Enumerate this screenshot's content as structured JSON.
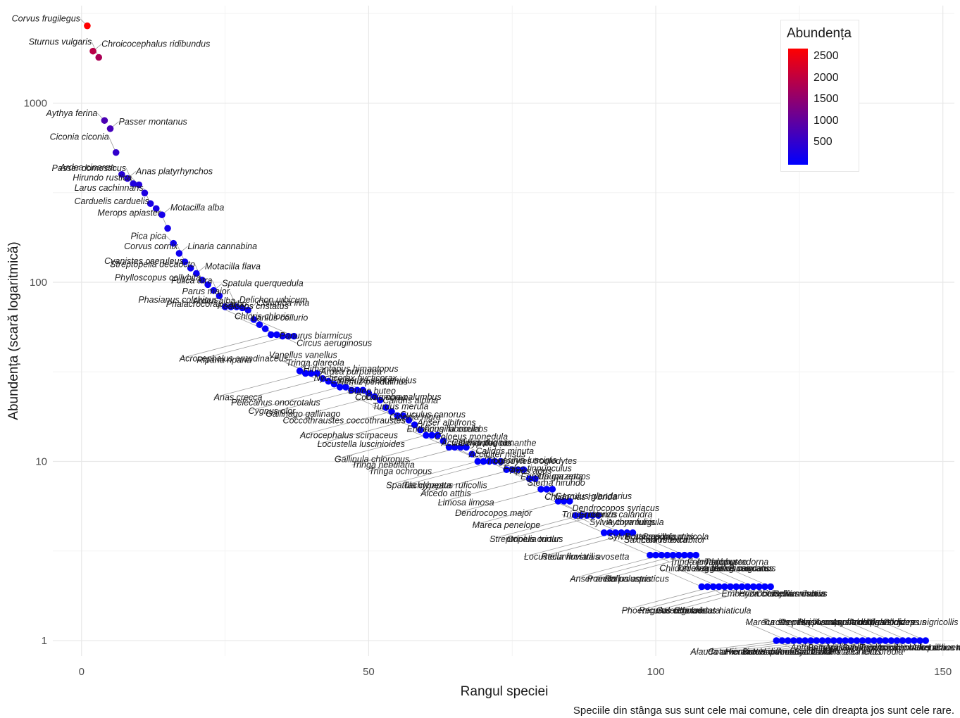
{
  "chart_data": {
    "type": "scatter",
    "title": "",
    "xlabel": "Rangul speciei",
    "ylabel": "Abundența (scară logaritmică)",
    "caption": "Speciile din stânga sus sunt cele mai comune, cele din dreapta jos sunt cele rare.",
    "x_scale": "linear",
    "y_scale": "log10",
    "xlim": [
      -5,
      152
    ],
    "ylim": [
      0.82,
      3500
    ],
    "x_ticks": [
      0,
      50,
      100,
      150
    ],
    "y_ticks": [
      1,
      10,
      100,
      1000
    ],
    "y_tick_labels": [
      "1",
      "10",
      "100",
      "1000"
    ],
    "grid": true,
    "color_scale": {
      "low": "#0000ff",
      "high": "#ff0000",
      "min": 1,
      "max": 2700
    },
    "legend": {
      "title": "Abundența",
      "placement": "top-right",
      "labels": [
        "2500",
        "2000",
        "1500",
        "1000",
        "500"
      ],
      "values": [
        2500,
        2000,
        1500,
        1000,
        500
      ]
    },
    "points": [
      {
        "x": 1,
        "y": 2700,
        "label": "Corvus frugilegus"
      },
      {
        "x": 2,
        "y": 1950,
        "label": "Chroicocephalus ridibundus"
      },
      {
        "x": 3,
        "y": 1800,
        "label": "Sturnus vulgaris"
      },
      {
        "x": 4,
        "y": 800,
        "label": "Aythya ferina"
      },
      {
        "x": 5,
        "y": 720,
        "label": "Passer montanus"
      },
      {
        "x": 6,
        "y": 530,
        "label": "Ciconia ciconia"
      },
      {
        "x": 7,
        "y": 400,
        "label": "Ardea cinerea"
      },
      {
        "x": 8,
        "y": 380,
        "label": "Anas platyrhynchos"
      },
      {
        "x": 9,
        "y": 355,
        "label": "Passer domesticus"
      },
      {
        "x": 10,
        "y": 350,
        "label": "Hirundo rustica"
      },
      {
        "x": 11,
        "y": 315,
        "label": ""
      },
      {
        "x": 12,
        "y": 275,
        "label": "Larus cachinnans"
      },
      {
        "x": 13,
        "y": 258,
        "label": "Carduelis carduelis"
      },
      {
        "x": 14,
        "y": 238,
        "label": "Motacilla alba"
      },
      {
        "x": 15,
        "y": 200,
        "label": "Merops apiaster"
      },
      {
        "x": 16,
        "y": 165,
        "label": "Pica pica"
      },
      {
        "x": 17,
        "y": 145,
        "label": "Linaria cannabina"
      },
      {
        "x": 18,
        "y": 130,
        "label": "Corvus cornix"
      },
      {
        "x": 19,
        "y": 120,
        "label": "Cyanistes caeruleus"
      },
      {
        "x": 20,
        "y": 112,
        "label": "Motacilla flava"
      },
      {
        "x": 21,
        "y": 103,
        "label": "Streptopelia decaocto"
      },
      {
        "x": 22,
        "y": 97,
        "label": "Phylloscopus collybita"
      },
      {
        "x": 23,
        "y": 90,
        "label": "Spatula querquedula"
      },
      {
        "x": 24,
        "y": 84,
        "label": "Fulica atra"
      },
      {
        "x": 25,
        "y": 73,
        "label": "Phasianus colchicus"
      },
      {
        "x": 26,
        "y": 73,
        "label": "Delichon urbicum"
      },
      {
        "x": 27,
        "y": 73,
        "label": "Parus major"
      },
      {
        "x": 28,
        "y": 72,
        "label": "Ardea alba"
      },
      {
        "x": 29,
        "y": 70,
        "label": "Columba livia"
      },
      {
        "x": 30,
        "y": 62,
        "label": "Phalacrocorax carbo"
      },
      {
        "x": 31,
        "y": 58,
        "label": "Podiceps cristatus"
      },
      {
        "x": 32,
        "y": 55,
        "label": "Panurus biarmicus"
      },
      {
        "x": 33,
        "y": 51,
        "label": "Acrocephalus arundinaceus"
      },
      {
        "x": 34,
        "y": 51,
        "label": "Chloris chloris"
      },
      {
        "x": 35,
        "y": 50,
        "label": "Circus aeruginosus"
      },
      {
        "x": 36,
        "y": 50,
        "label": "Riparia riparia"
      },
      {
        "x": 37,
        "y": 50,
        "label": "Lanius collurio"
      },
      {
        "x": 38,
        "y": 32,
        "label": "Nycticorax nycticorax"
      },
      {
        "x": 39,
        "y": 31,
        "label": "Anas crecca"
      },
      {
        "x": 40,
        "y": 31,
        "label": "Vanellus vanellus"
      },
      {
        "x": 41,
        "y": 31,
        "label": "Emberiza schoeniclus"
      },
      {
        "x": 42,
        "y": 29,
        "label": "Pelecanus onocrotalus"
      },
      {
        "x": 43,
        "y": 28,
        "label": "Tringa glareola"
      },
      {
        "x": 44,
        "y": 27,
        "label": "Buteo buteo"
      },
      {
        "x": 45,
        "y": 26,
        "label": "Cygnus olor"
      },
      {
        "x": 46,
        "y": 26,
        "label": "Himantopus himantopus"
      },
      {
        "x": 47,
        "y": 25,
        "label": "Columba palumbus"
      },
      {
        "x": 48,
        "y": 25,
        "label": "Gallinago gallinago"
      },
      {
        "x": 49,
        "y": 25,
        "label": "Ardea purpurea"
      },
      {
        "x": 50,
        "y": 24,
        "label": "Calidris alpina"
      },
      {
        "x": 51,
        "y": 23,
        "label": "Coccothraustes coccothraustes"
      },
      {
        "x": 52,
        "y": 22,
        "label": "Remiz pendulinus"
      },
      {
        "x": 53,
        "y": 20,
        "label": "Cuculus canorus"
      },
      {
        "x": 54,
        "y": 19,
        "label": "Acrocephalus scirpaceus"
      },
      {
        "x": 55,
        "y": 18,
        "label": "Corvus corax"
      },
      {
        "x": 56,
        "y": 18,
        "label": "Anser albifrons"
      },
      {
        "x": 57,
        "y": 17,
        "label": "Locustella luscinioides"
      },
      {
        "x": 58,
        "y": 16,
        "label": "Turdus merula"
      },
      {
        "x": 59,
        "y": 15,
        "label": "Coloeus monedula"
      },
      {
        "x": 60,
        "y": 14,
        "label": "Gallinula chloropus"
      },
      {
        "x": 61,
        "y": 14,
        "label": "Ciconia nigra"
      },
      {
        "x": 62,
        "y": 14,
        "label": "Calidris pugnax"
      },
      {
        "x": 63,
        "y": 13,
        "label": "Tringa nebularia"
      },
      {
        "x": 64,
        "y": 12,
        "label": "Erithacus rubecula"
      },
      {
        "x": 65,
        "y": 12,
        "label": "Accipiter nisus"
      },
      {
        "x": 66,
        "y": 12,
        "label": "Tringa ochropus"
      },
      {
        "x": 67,
        "y": 12,
        "label": "Fringilla coelebs"
      },
      {
        "x": 68,
        "y": 11,
        "label": "Troglodytes troglodytes"
      },
      {
        "x": 69,
        "y": 10,
        "label": "Spatula clypeata"
      },
      {
        "x": 70,
        "y": 10,
        "label": "Actitis hypoleucos"
      },
      {
        "x": 71,
        "y": 10,
        "label": "Falco tinnunculus"
      },
      {
        "x": 72,
        "y": 10,
        "label": "Tachybaptus ruficollis"
      },
      {
        "x": 73,
        "y": 10,
        "label": "Oenanthe oenanthe"
      },
      {
        "x": 74,
        "y": 9,
        "label": "Egretta garzetta"
      },
      {
        "x": 75,
        "y": 9,
        "label": "Alcedo atthis"
      },
      {
        "x": 76,
        "y": 9,
        "label": "Calidris minuta"
      },
      {
        "x": 77,
        "y": 9,
        "label": "Upupa epops"
      },
      {
        "x": 78,
        "y": 8,
        "label": "Limosa limosa"
      },
      {
        "x": 79,
        "y": 8,
        "label": "Luscinia luscinia"
      },
      {
        "x": 80,
        "y": 7,
        "label": "Garrulus glandarius"
      },
      {
        "x": 81,
        "y": 7,
        "label": "Dendrocopos major"
      },
      {
        "x": 82,
        "y": 7,
        "label": "Apus apus"
      },
      {
        "x": 83,
        "y": 6,
        "label": "Dendrocopos syriacus"
      },
      {
        "x": 84,
        "y": 6,
        "label": "Mareca penelope"
      },
      {
        "x": 85,
        "y": 6,
        "label": "Sterna hirundo"
      },
      {
        "x": 86,
        "y": 5,
        "label": "Sylvia communis"
      },
      {
        "x": 87,
        "y": 5,
        "label": "Streptopelia turtur"
      },
      {
        "x": 88,
        "y": 5,
        "label": "Chlidonias hybrida"
      },
      {
        "x": 89,
        "y": 5,
        "label": "Aythya fuligula"
      },
      {
        "x": 90,
        "y": 5,
        "label": "Oriolus oriolus"
      },
      {
        "x": 91,
        "y": 4,
        "label": "Tringa totanus"
      },
      {
        "x": 92,
        "y": 4,
        "label": "Saxicola rubetra"
      },
      {
        "x": 93,
        "y": 4,
        "label": "Locustella fluviatilis"
      },
      {
        "x": 94,
        "y": 4,
        "label": "Emberiza calandra"
      },
      {
        "x": 95,
        "y": 4,
        "label": "Lanius excubitor"
      },
      {
        "x": 96,
        "y": 4,
        "label": "Recurvirostra avosetta"
      },
      {
        "x": 99,
        "y": 3,
        "label": "Sylvia atricapilla"
      },
      {
        "x": 100,
        "y": 3,
        "label": "Tringa erythropus"
      },
      {
        "x": 101,
        "y": 3,
        "label": "Anser anser"
      },
      {
        "x": 102,
        "y": 3,
        "label": "Botaurus minutus"
      },
      {
        "x": 103,
        "y": 3,
        "label": "Falco subbuteo"
      },
      {
        "x": 104,
        "y": 3,
        "label": "Poecile palustris"
      },
      {
        "x": 105,
        "y": 3,
        "label": "Saxicola rubicola"
      },
      {
        "x": 106,
        "y": 3,
        "label": "Tadorna tadorna"
      },
      {
        "x": 107,
        "y": 3,
        "label": "Rallus aquaticus"
      },
      {
        "x": 108,
        "y": 2,
        "label": "Chlidonias niger"
      },
      {
        "x": 109,
        "y": 2,
        "label": "Emberiza citrinella"
      },
      {
        "x": 110,
        "y": 2,
        "label": "Phoenicurus ochruros"
      },
      {
        "x": 111,
        "y": 2,
        "label": "Tadorna ferruginea"
      },
      {
        "x": 112,
        "y": 2,
        "label": "Hydrocoloeus minutus"
      },
      {
        "x": 113,
        "y": 2,
        "label": "Regulus regulus"
      },
      {
        "x": 114,
        "y": 2,
        "label": "Aegithalos caudatus"
      },
      {
        "x": 115,
        "y": 2,
        "label": "Charadrius dubius"
      },
      {
        "x": 116,
        "y": 2,
        "label": "Galerida cristata"
      },
      {
        "x": 117,
        "y": 2,
        "label": "Milvus migrans"
      },
      {
        "x": 118,
        "y": 2,
        "label": "Sylvia nisoria"
      },
      {
        "x": 119,
        "y": 2,
        "label": "Charadrius hiaticula"
      },
      {
        "x": 120,
        "y": 2,
        "label": "Picus canus"
      },
      {
        "x": 121,
        "y": 1,
        "label": "Anthus trivialis"
      },
      {
        "x": 122,
        "y": 1,
        "label": "Alauda arvensis"
      },
      {
        "x": 123,
        "y": 1,
        "label": "Mareca strepera"
      },
      {
        "x": 124,
        "y": 1,
        "label": "Botaurus stellaris"
      },
      {
        "x": 125,
        "y": 1,
        "label": "Coturnix coturnix"
      },
      {
        "x": 126,
        "y": 1,
        "label": "Turdus pilaris"
      },
      {
        "x": 127,
        "y": 1,
        "label": "Aquila pomarina"
      },
      {
        "x": 128,
        "y": 1,
        "label": "Hieraaetus pennatus"
      },
      {
        "x": 129,
        "y": 1,
        "label": "Pernis apivorus"
      },
      {
        "x": 130,
        "y": 1,
        "label": "Sylvia curruca"
      },
      {
        "x": 131,
        "y": 1,
        "label": "Buteo rufinus"
      },
      {
        "x": 132,
        "y": 1,
        "label": "Phylloscopus trochilus"
      },
      {
        "x": 133,
        "y": 1,
        "label": "Turdus philomelos"
      },
      {
        "x": 134,
        "y": 1,
        "label": "Haliaeetus albicilla"
      },
      {
        "x": 135,
        "y": 1,
        "label": "Acrocephalus palustris"
      },
      {
        "x": 136,
        "y": 1,
        "label": "Acrocephalus schoenobaenus"
      },
      {
        "x": 137,
        "y": 1,
        "label": "Anas acuta"
      },
      {
        "x": 138,
        "y": 1,
        "label": "Aquila clanga"
      },
      {
        "x": 139,
        "y": 1,
        "label": "Jynx torquilla"
      },
      {
        "x": 140,
        "y": 1,
        "label": "Sylvia borin"
      },
      {
        "x": 141,
        "y": 1,
        "label": "Ardeola ralloides"
      },
      {
        "x": 142,
        "y": 1,
        "label": "Athene noctua"
      },
      {
        "x": 143,
        "y": 1,
        "label": "Calidris falcinellus"
      },
      {
        "x": 144,
        "y": 1,
        "label": "Circus cyaneus"
      },
      {
        "x": 145,
        "y": 1,
        "label": "Lanius minor"
      },
      {
        "x": 146,
        "y": 1,
        "label": "Platalea leucorodia"
      },
      {
        "x": 147,
        "y": 1,
        "label": "Podiceps nigricollis"
      }
    ]
  }
}
